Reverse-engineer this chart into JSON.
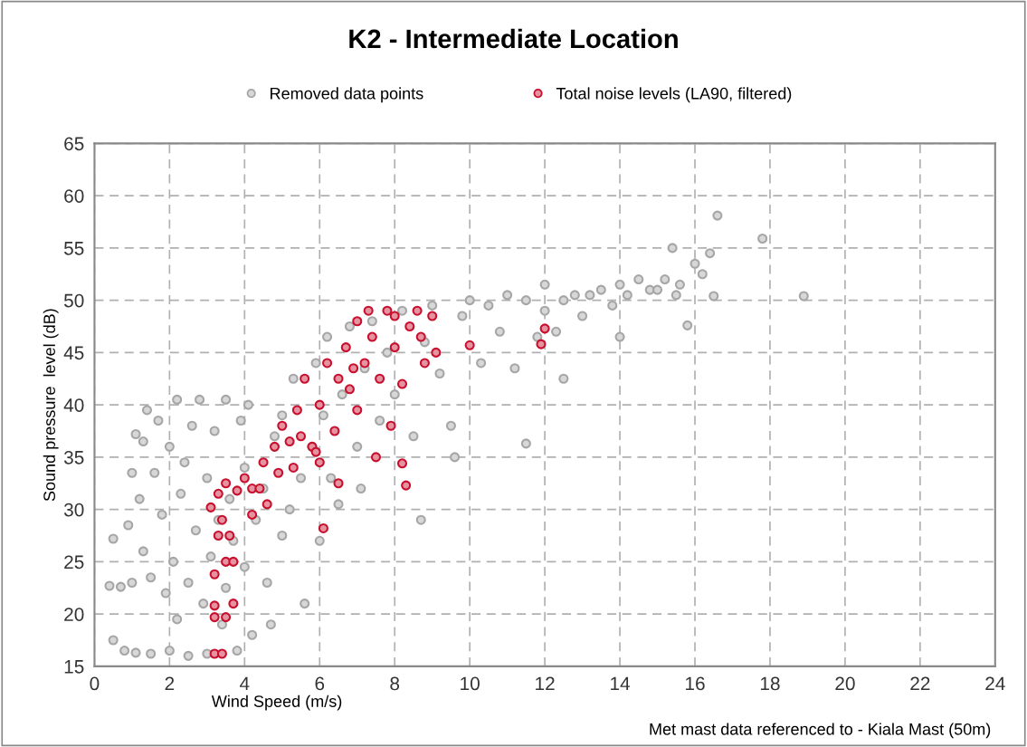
{
  "chart_data": {
    "type": "scatter",
    "title": "K2 - Intermediate Location",
    "xlabel": "Wind Speed (m/s)",
    "ylabel": "Sound pressure  level (dB)",
    "annotations": [
      "Met mast data referenced to - Kiala Mast (50m)"
    ],
    "xlim": [
      0,
      24
    ],
    "xticks": [
      0,
      2,
      4,
      6,
      8,
      10,
      12,
      14,
      16,
      18,
      20,
      22,
      24
    ],
    "ylim": [
      15,
      65
    ],
    "yticks": [
      15,
      20,
      25,
      30,
      35,
      40,
      45,
      50,
      55,
      60,
      65
    ],
    "grid": true,
    "legend": "top",
    "marker": "circle",
    "series": [
      {
        "name": "Removed data points",
        "color": "#a6a6a6",
        "x": [
          0.4,
          0.5,
          0.5,
          0.7,
          0.8,
          0.9,
          1.0,
          1.0,
          1.1,
          1.1,
          1.2,
          1.3,
          1.3,
          1.4,
          1.5,
          1.5,
          1.6,
          1.7,
          1.8,
          1.9,
          2.0,
          2.0,
          2.1,
          2.2,
          2.2,
          2.3,
          2.4,
          2.5,
          2.5,
          2.6,
          2.7,
          2.8,
          2.9,
          3.0,
          3.0,
          3.1,
          3.2,
          3.3,
          3.4,
          3.5,
          3.5,
          3.6,
          3.7,
          3.8,
          3.9,
          4.0,
          4.0,
          4.1,
          4.2,
          4.3,
          4.5,
          4.6,
          4.7,
          4.8,
          5.0,
          5.0,
          5.2,
          5.3,
          5.5,
          5.6,
          5.8,
          5.9,
          6.0,
          6.1,
          6.2,
          6.3,
          6.5,
          6.6,
          6.8,
          7.0,
          7.1,
          7.2,
          7.4,
          7.6,
          7.8,
          8.0,
          8.2,
          8.5,
          8.7,
          8.8,
          9.0,
          9.2,
          9.5,
          9.6,
          9.8,
          10.0,
          10.3,
          10.5,
          10.8,
          11.0,
          11.2,
          11.5,
          11.5,
          11.8,
          12.0,
          12.0,
          12.3,
          12.5,
          12.5,
          12.8,
          13.0,
          13.2,
          13.5,
          13.8,
          14.0,
          14.0,
          14.2,
          14.5,
          14.8,
          15.0,
          15.2,
          15.4,
          15.5,
          15.6,
          15.8,
          16.0,
          16.2,
          16.4,
          16.5,
          16.6,
          17.8,
          18.9
        ],
        "values": [
          22.7,
          27.2,
          17.5,
          22.6,
          16.5,
          28.5,
          33.5,
          23.0,
          16.3,
          37.2,
          31.0,
          36.5,
          26.0,
          39.5,
          23.5,
          16.2,
          33.5,
          38.5,
          29.5,
          22.0,
          16.5,
          36.0,
          25.0,
          40.5,
          19.5,
          31.5,
          34.5,
          23.0,
          16.0,
          38.0,
          28.0,
          40.5,
          21.0,
          33.0,
          16.2,
          25.5,
          37.5,
          29.0,
          19.0,
          40.5,
          22.5,
          31.0,
          27.0,
          16.5,
          38.5,
          34.0,
          24.5,
          40.0,
          18.0,
          29.0,
          32.0,
          23.0,
          19.0,
          37.0,
          27.5,
          39.0,
          30.0,
          42.5,
          33.0,
          21.0,
          36.0,
          44.0,
          27.0,
          39.0,
          46.5,
          33.0,
          30.5,
          41.0,
          47.5,
          36.0,
          32.0,
          43.5,
          48.0,
          38.5,
          45.0,
          41.0,
          49.0,
          37.0,
          29.0,
          46.0,
          49.5,
          43.0,
          38.0,
          35.0,
          48.5,
          50.0,
          44.0,
          49.5,
          47.0,
          50.5,
          43.5,
          36.3,
          50.0,
          46.5,
          51.5,
          49.0,
          47.0,
          42.5,
          50.0,
          50.5,
          48.5,
          50.5,
          51.0,
          49.5,
          51.5,
          46.5,
          50.5,
          52.0,
          51.0,
          51.0,
          52.0,
          55.0,
          50.5,
          51.5,
          47.6,
          53.5,
          52.5,
          54.5,
          50.4,
          58.1,
          55.9,
          50.4
        ]
      },
      {
        "name": "Total noise levels (LA90, filtered)",
        "color": "#c8102e",
        "x": [
          3.2,
          3.4,
          3.2,
          3.5,
          3.2,
          3.7,
          3.2,
          3.5,
          3.7,
          3.3,
          3.6,
          3.1,
          3.3,
          3.5,
          3.8,
          4.0,
          4.2,
          3.4,
          4.2,
          4.5,
          4.6,
          4.8,
          4.9,
          5.0,
          5.2,
          5.3,
          5.4,
          5.5,
          5.6,
          5.8,
          6.0,
          6.0,
          6.1,
          6.2,
          6.4,
          6.5,
          6.5,
          6.7,
          6.8,
          7.0,
          7.0,
          7.2,
          7.4,
          7.5,
          7.6,
          7.8,
          7.9,
          8.0,
          8.0,
          8.2,
          8.2,
          8.3,
          8.4,
          8.6,
          8.8,
          9.0,
          9.1,
          10.0,
          11.9,
          12.0,
          6.9,
          5.9,
          4.4,
          7.3,
          8.7
        ],
        "values": [
          16.2,
          16.2,
          19.7,
          19.7,
          20.8,
          21.0,
          23.8,
          25.0,
          25.0,
          27.5,
          27.5,
          30.2,
          31.5,
          32.5,
          31.8,
          33.0,
          32.0,
          29.0,
          29.5,
          34.5,
          30.5,
          36.0,
          33.5,
          38.0,
          36.5,
          34.0,
          39.5,
          37.0,
          42.5,
          36.0,
          40.0,
          34.5,
          28.2,
          44.0,
          37.5,
          42.5,
          32.5,
          45.5,
          41.5,
          48.0,
          39.5,
          44.0,
          46.5,
          35.0,
          42.5,
          49.0,
          38.0,
          48.5,
          45.5,
          42.0,
          34.4,
          32.3,
          47.5,
          49.0,
          44.0,
          48.5,
          45.0,
          45.7,
          45.8,
          47.3,
          43.5,
          35.5,
          32.0,
          49.0,
          46.5
        ]
      }
    ]
  }
}
